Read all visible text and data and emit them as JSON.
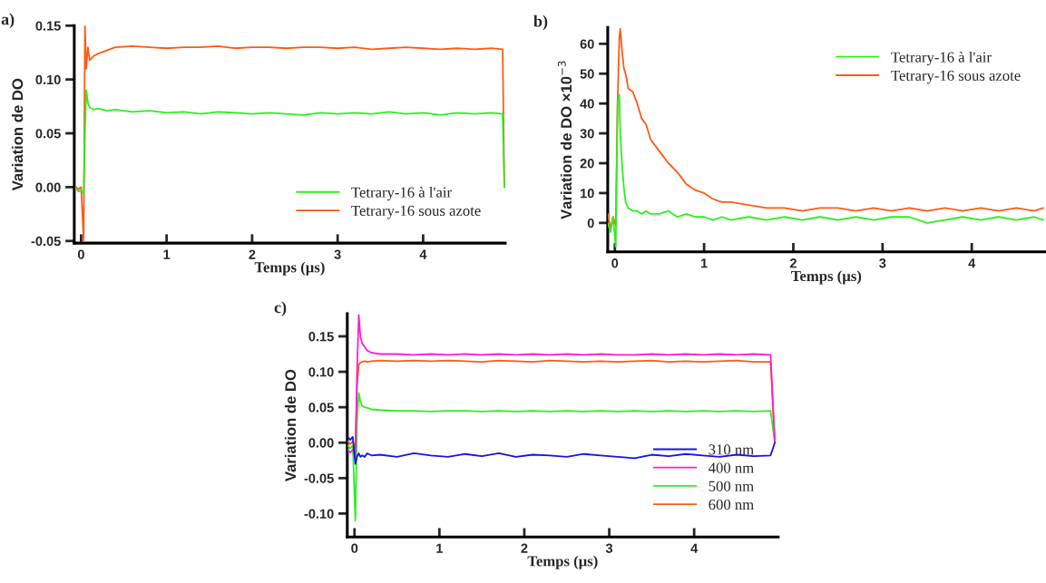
{
  "chart_data": [
    {
      "type": "line",
      "title": "a)",
      "xlabel": "Temps (µs)",
      "ylabel": "Variation de DO",
      "xlim": [
        -0.08,
        4.96
      ],
      "ylim": [
        -0.052,
        0.15
      ],
      "xticks": [
        0,
        1,
        2,
        3,
        4
      ],
      "yticks": [
        {
          "value": -0.05,
          "label": "-0.05"
        },
        {
          "value": 0.0,
          "label": "0.00"
        },
        {
          "value": 0.05,
          "label": "0.05"
        },
        {
          "value": 0.1,
          "label": "0.10"
        },
        {
          "value": 0.15,
          "label": "0.15"
        }
      ],
      "grid": false,
      "legend": "bottom right",
      "marker": "none",
      "line_style": "solid",
      "x": [
        -0.06,
        -0.03,
        0.0,
        0.03,
        0.045,
        0.06,
        0.08,
        0.1,
        0.15,
        0.2,
        0.3,
        0.4,
        0.6,
        0.8,
        1.0,
        1.2,
        1.4,
        1.6,
        1.8,
        2.0,
        2.2,
        2.4,
        2.6,
        2.8,
        3.0,
        3.2,
        3.4,
        3.6,
        3.8,
        4.0,
        4.2,
        4.4,
        4.6,
        4.8,
        4.93,
        4.95
      ],
      "series": [
        {
          "name": "Tetrary-16 à l'air",
          "color": "#2bf01e",
          "values": [
            -0.002,
            -0.004,
            -0.003,
            -0.006,
            0.05,
            0.09,
            0.078,
            0.074,
            0.072,
            0.073,
            0.071,
            0.072,
            0.07,
            0.071,
            0.069,
            0.07,
            0.068,
            0.07,
            0.069,
            0.068,
            0.069,
            0.068,
            0.067,
            0.069,
            0.068,
            0.069,
            0.068,
            0.07,
            0.068,
            0.069,
            0.067,
            0.069,
            0.068,
            0.069,
            0.068,
            0.0
          ]
        },
        {
          "name": "Tetrary-16 sous azote",
          "color": "#ff5a14",
          "values": [
            0.0,
            -0.002,
            0.0,
            -0.05,
            0.15,
            0.11,
            0.13,
            0.118,
            0.122,
            0.124,
            0.127,
            0.13,
            0.131,
            0.13,
            0.129,
            0.13,
            0.13,
            0.131,
            0.129,
            0.13,
            0.13,
            0.129,
            0.13,
            0.13,
            0.129,
            0.13,
            0.128,
            0.129,
            0.13,
            0.129,
            0.128,
            0.129,
            0.128,
            0.129,
            0.128,
            0.0
          ]
        }
      ]
    },
    {
      "type": "line",
      "title": "b)",
      "xlabel": "Temps (µs)",
      "ylabel": "Variation de DO ×10$^{−3}$",
      "xlim": [
        -0.08,
        4.82
      ],
      "ylim": [
        -9.7,
        65.5
      ],
      "xticks": [
        0,
        1,
        2,
        3,
        4
      ],
      "yticks": [
        0,
        10,
        20,
        30,
        40,
        50,
        60
      ],
      "grid": false,
      "legend": "top right",
      "marker": "none",
      "line_style": "solid",
      "x": [
        -0.08,
        -0.05,
        -0.02,
        0.01,
        0.03,
        0.05,
        0.06,
        0.08,
        0.1,
        0.12,
        0.15,
        0.2,
        0.25,
        0.3,
        0.35,
        0.4,
        0.5,
        0.6,
        0.7,
        0.8,
        0.9,
        1.0,
        1.1,
        1.2,
        1.3,
        1.5,
        1.7,
        1.9,
        2.1,
        2.3,
        2.5,
        2.7,
        2.9,
        3.1,
        3.3,
        3.5,
        3.7,
        3.9,
        4.1,
        4.3,
        4.5,
        4.7,
        4.8
      ],
      "series": [
        {
          "name": "Tetrary-16 à l'air",
          "color": "#2bf01e",
          "values": [
            0,
            -3,
            2,
            -8,
            40,
            43,
            30,
            20,
            12,
            7,
            5,
            4,
            4,
            3,
            4,
            3,
            3,
            4,
            2,
            3,
            2,
            2,
            1,
            2,
            1,
            2,
            1,
            2,
            1,
            2,
            1,
            2,
            1,
            2,
            2,
            0,
            1,
            2,
            1,
            2,
            1,
            2,
            1
          ]
        },
        {
          "name": "Tetrary-16 sous azote",
          "color": "#ff5a14",
          "values": [
            3,
            -2,
            2,
            -1,
            40,
            62,
            65,
            58,
            52,
            50,
            45,
            44,
            40,
            35,
            33,
            28,
            24,
            20,
            17,
            13,
            11,
            10,
            8,
            7,
            7,
            6,
            5,
            5,
            4,
            5,
            5,
            4,
            5,
            4,
            5,
            4,
            5,
            4,
            5,
            4,
            5,
            4,
            5
          ]
        }
      ]
    },
    {
      "type": "line",
      "title": "c)",
      "xlabel": "Temps (µs)",
      "ylabel": "Variation de DO",
      "xlim": [
        -0.085,
        4.99
      ],
      "ylim": [
        -0.133,
        0.182
      ],
      "xticks": [
        0,
        1,
        2,
        3,
        4
      ],
      "yticks": [
        {
          "value": -0.1,
          "label": "-0.10"
        },
        {
          "value": -0.05,
          "label": "-0.05"
        },
        {
          "value": 0.0,
          "label": "0.00"
        },
        {
          "value": 0.05,
          "label": "0.05"
        },
        {
          "value": 0.1,
          "label": "0.10"
        },
        {
          "value": 0.15,
          "label": "0.15"
        }
      ],
      "grid": false,
      "legend": "bottom right",
      "marker": "none",
      "line_style": "solid",
      "x": [
        -0.08,
        -0.05,
        -0.02,
        0.01,
        0.03,
        0.05,
        0.07,
        0.09,
        0.12,
        0.15,
        0.2,
        0.3,
        0.5,
        0.7,
        0.9,
        1.1,
        1.3,
        1.5,
        1.7,
        1.9,
        2.1,
        2.3,
        2.5,
        2.7,
        2.9,
        3.1,
        3.3,
        3.5,
        3.7,
        3.9,
        4.1,
        4.3,
        4.5,
        4.7,
        4.9,
        4.95
      ],
      "series": [
        {
          "name": "310 nm",
          "color": "#1414e6",
          "values": [
            0.008,
            0.004,
            0.008,
            -0.03,
            -0.02,
            -0.015,
            -0.02,
            -0.018,
            -0.02,
            -0.015,
            -0.018,
            -0.017,
            -0.02,
            -0.015,
            -0.018,
            -0.02,
            -0.016,
            -0.019,
            -0.015,
            -0.02,
            -0.017,
            -0.018,
            -0.02,
            -0.016,
            -0.018,
            -0.02,
            -0.022,
            -0.017,
            -0.019,
            -0.016,
            -0.018,
            -0.02,
            -0.017,
            -0.019,
            -0.018,
            0.0
          ]
        },
        {
          "name": "400 nm",
          "color": "#ff1ecf",
          "values": [
            -0.01,
            -0.014,
            -0.01,
            -0.02,
            0.1,
            0.18,
            0.15,
            0.14,
            0.135,
            0.13,
            0.127,
            0.125,
            0.125,
            0.124,
            0.125,
            0.124,
            0.125,
            0.124,
            0.125,
            0.124,
            0.125,
            0.124,
            0.125,
            0.124,
            0.125,
            0.124,
            0.124,
            0.125,
            0.124,
            0.125,
            0.124,
            0.125,
            0.124,
            0.125,
            0.124,
            0.0
          ]
        },
        {
          "name": "500 nm",
          "color": "#2bf01e",
          "values": [
            -0.004,
            -0.008,
            -0.004,
            -0.11,
            0.03,
            0.07,
            0.058,
            0.052,
            0.05,
            0.049,
            0.047,
            0.046,
            0.045,
            0.045,
            0.044,
            0.045,
            0.045,
            0.044,
            0.045,
            0.044,
            0.045,
            0.044,
            0.045,
            0.044,
            0.045,
            0.044,
            0.045,
            0.044,
            0.045,
            0.044,
            0.045,
            0.044,
            0.045,
            0.044,
            0.045,
            0.0
          ]
        },
        {
          "name": "600 nm",
          "color": "#ff5a14",
          "values": [
            0.002,
            -0.002,
            0.002,
            -0.01,
            0.08,
            0.11,
            0.113,
            0.114,
            0.115,
            0.114,
            0.115,
            0.116,
            0.115,
            0.116,
            0.115,
            0.116,
            0.115,
            0.114,
            0.116,
            0.115,
            0.114,
            0.116,
            0.115,
            0.114,
            0.115,
            0.114,
            0.115,
            0.116,
            0.114,
            0.115,
            0.114,
            0.115,
            0.116,
            0.114,
            0.114,
            0.0
          ]
        }
      ]
    }
  ]
}
